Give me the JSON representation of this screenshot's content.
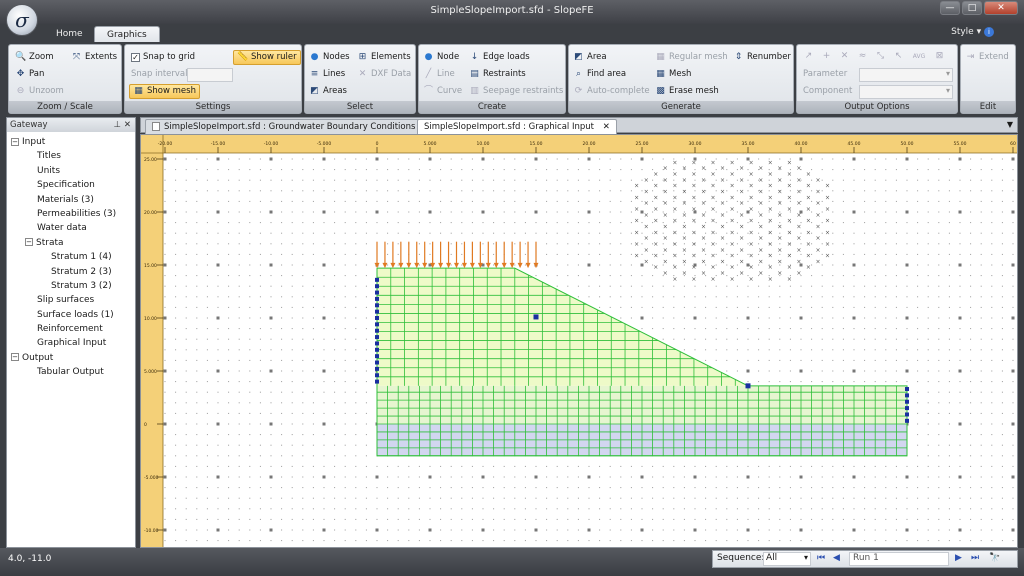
{
  "window": {
    "title": "SimpleSlopeImport.sfd - SlopeFE",
    "logo_symbol": "σ",
    "min": "—",
    "max": "□",
    "close": "✕"
  },
  "ribbon_tabs": [
    "Home",
    "Graphics"
  ],
  "style_menu": "Style",
  "groups": {
    "zoom": {
      "title": "Zoom / Scale",
      "zoom": "Zoom",
      "extents": "Extents",
      "pan": "Pan",
      "unzoom": "Unzoom"
    },
    "settings": {
      "title": "Settings",
      "snap_to_grid": "Snap to grid",
      "show_ruler": "Show ruler",
      "snap_interval": "Snap interval",
      "show_mesh": "Show mesh"
    },
    "select": {
      "title": "Select",
      "nodes": "Nodes",
      "elements": "Elements",
      "lines": "Lines",
      "dxf_data": "DXF Data",
      "areas": "Areas"
    },
    "create": {
      "title": "Create",
      "node": "Node",
      "edge_loads": "Edge loads",
      "line": "Line",
      "restraints": "Restraints",
      "curve": "Curve",
      "seepage_restraints": "Seepage restraints"
    },
    "generate": {
      "title": "Generate",
      "area": "Area",
      "regular_mesh": "Regular mesh",
      "renumber": "Renumber",
      "find_area": "Find area",
      "mesh": "Mesh",
      "auto_complete": "Auto-complete",
      "erase_mesh": "Erase mesh"
    },
    "output": {
      "title": "Output Options",
      "parameter": "Parameter",
      "component": "Component",
      "avg": "AVG"
    },
    "edit": {
      "title": "Edit",
      "extend": "Extend"
    }
  },
  "gateway": {
    "title": "Gateway",
    "tree": [
      {
        "label": "Input",
        "level": 0,
        "expander": "−"
      },
      {
        "label": "Titles",
        "level": 1
      },
      {
        "label": "Units",
        "level": 1
      },
      {
        "label": "Specification",
        "level": 1
      },
      {
        "label": "Materials (3)",
        "level": 1
      },
      {
        "label": "Permeabilities (3)",
        "level": 1
      },
      {
        "label": "Water data",
        "level": 1
      },
      {
        "label": "Strata",
        "level": 1,
        "expander": "−"
      },
      {
        "label": "Stratum 1 (4)",
        "level": 2
      },
      {
        "label": "Stratum 2 (3)",
        "level": 2
      },
      {
        "label": "Stratum 3 (2)",
        "level": 2
      },
      {
        "label": "Slip surfaces",
        "level": 1
      },
      {
        "label": "Surface loads (1)",
        "level": 1
      },
      {
        "label": "Reinforcement",
        "level": 1
      },
      {
        "label": "Graphical Input",
        "level": 1
      },
      {
        "label": "Output",
        "level": 0,
        "expander": "−"
      },
      {
        "label": "Tabular Output",
        "level": 1
      }
    ]
  },
  "doc_tabs": [
    {
      "label": "SimpleSlopeImport.sfd : Groundwater Boundary Conditions",
      "active": false
    },
    {
      "label": "SimpleSlopeImport.sfd : Graphical Input",
      "active": true
    }
  ],
  "ruler": {
    "x_labels": [
      "-20.00",
      "-15.00",
      "-10.00",
      "-5.000",
      "0",
      "5.000",
      "10.00",
      "15.00",
      "20.00",
      "25.00",
      "30.00",
      "35.00",
      "40.00",
      "45.00",
      "50.00",
      "55.00",
      "60"
    ],
    "y_labels": [
      "25.00",
      "20.00",
      "15.00",
      "10.00",
      "5.000",
      "0",
      "-5.000",
      "-10.00"
    ]
  },
  "colors": {
    "upper_soil": "#eefac8",
    "lower_soil": "#d2d6f0",
    "mesh": "#2fbf3a",
    "load": "#e07a22",
    "node": "#1a2fa0",
    "ruler": "#f4d078"
  },
  "status": {
    "coords": "4.0, -11.0",
    "sequence_label": "Sequence:",
    "sequence_value": "All",
    "run": "Run 1"
  }
}
